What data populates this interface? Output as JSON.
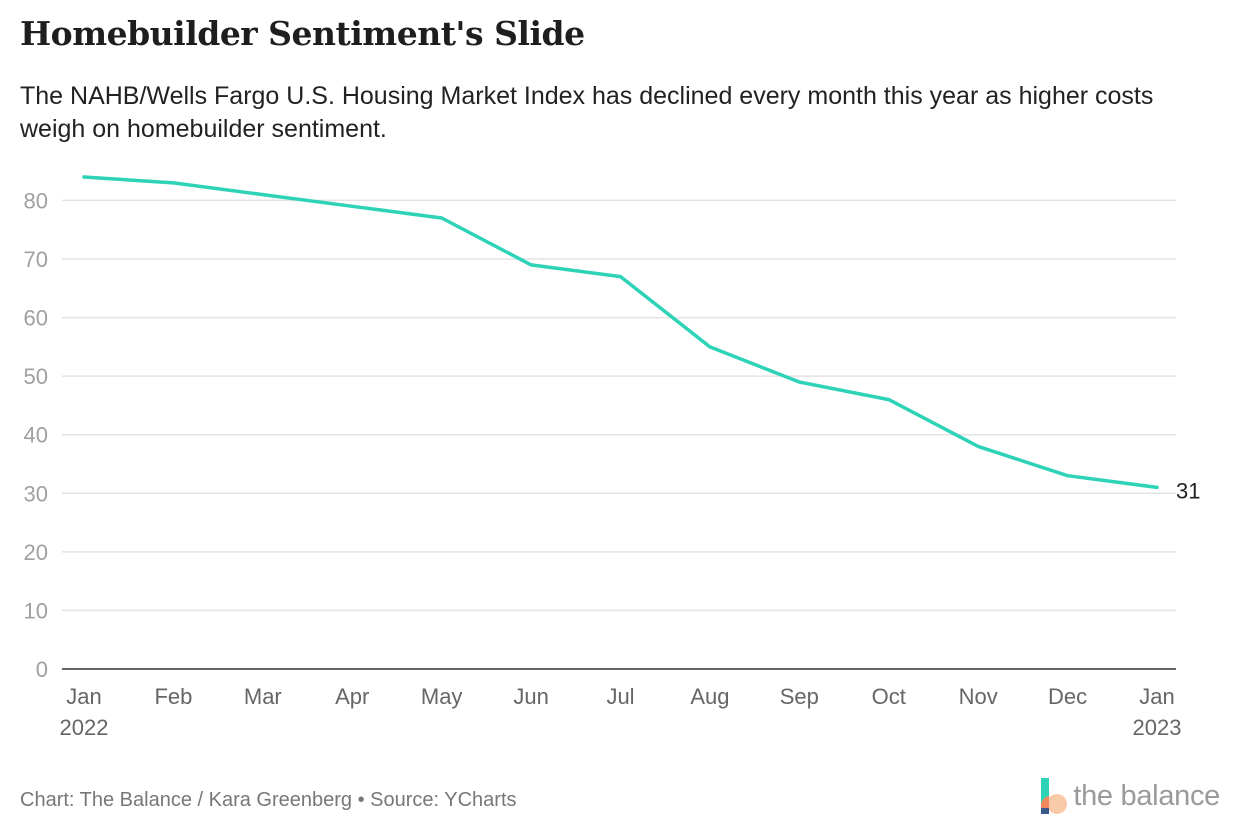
{
  "header": {
    "title": "Homebuilder Sentiment's Slide",
    "subtitle": "The NAHB/Wells Fargo U.S. Housing Market Index has declined every month this year as higher costs weigh on homebuilder sentiment."
  },
  "footer": {
    "credit": "Chart: The Balance / Kara Greenberg • Source: YCharts",
    "logo_text": "the balance"
  },
  "chart_data": {
    "type": "line",
    "title": "Homebuilder Sentiment's Slide",
    "subtitle": "The NAHB/Wells Fargo U.S. Housing Market Index has declined every month this year as higher costs weigh on homebuilder sentiment.",
    "xlabel": "",
    "ylabel": "",
    "categories": [
      "Jan 2022",
      "Feb",
      "Mar",
      "Apr",
      "May",
      "Jun",
      "Jul",
      "Aug",
      "Sep",
      "Oct",
      "Nov",
      "Dec",
      "Jan 2023"
    ],
    "x_tick_labels": [
      [
        "Jan",
        "2022"
      ],
      [
        "Feb"
      ],
      [
        "Mar"
      ],
      [
        "Apr"
      ],
      [
        "May"
      ],
      [
        "Jun"
      ],
      [
        "Jul"
      ],
      [
        "Aug"
      ],
      [
        "Sep"
      ],
      [
        "Oct"
      ],
      [
        "Nov"
      ],
      [
        "Dec"
      ],
      [
        "Jan",
        "2023"
      ]
    ],
    "series": [
      {
        "values": [
          84,
          83,
          81,
          79,
          77,
          69,
          67,
          55,
          49,
          46,
          38,
          33,
          31
        ],
        "color": "#2ed3b7"
      }
    ],
    "ylim": [
      0,
      84
    ],
    "yticks": [
      0,
      10,
      20,
      30,
      40,
      50,
      60,
      70,
      80
    ],
    "end_label": "31",
    "grid": true,
    "legend": "none"
  }
}
